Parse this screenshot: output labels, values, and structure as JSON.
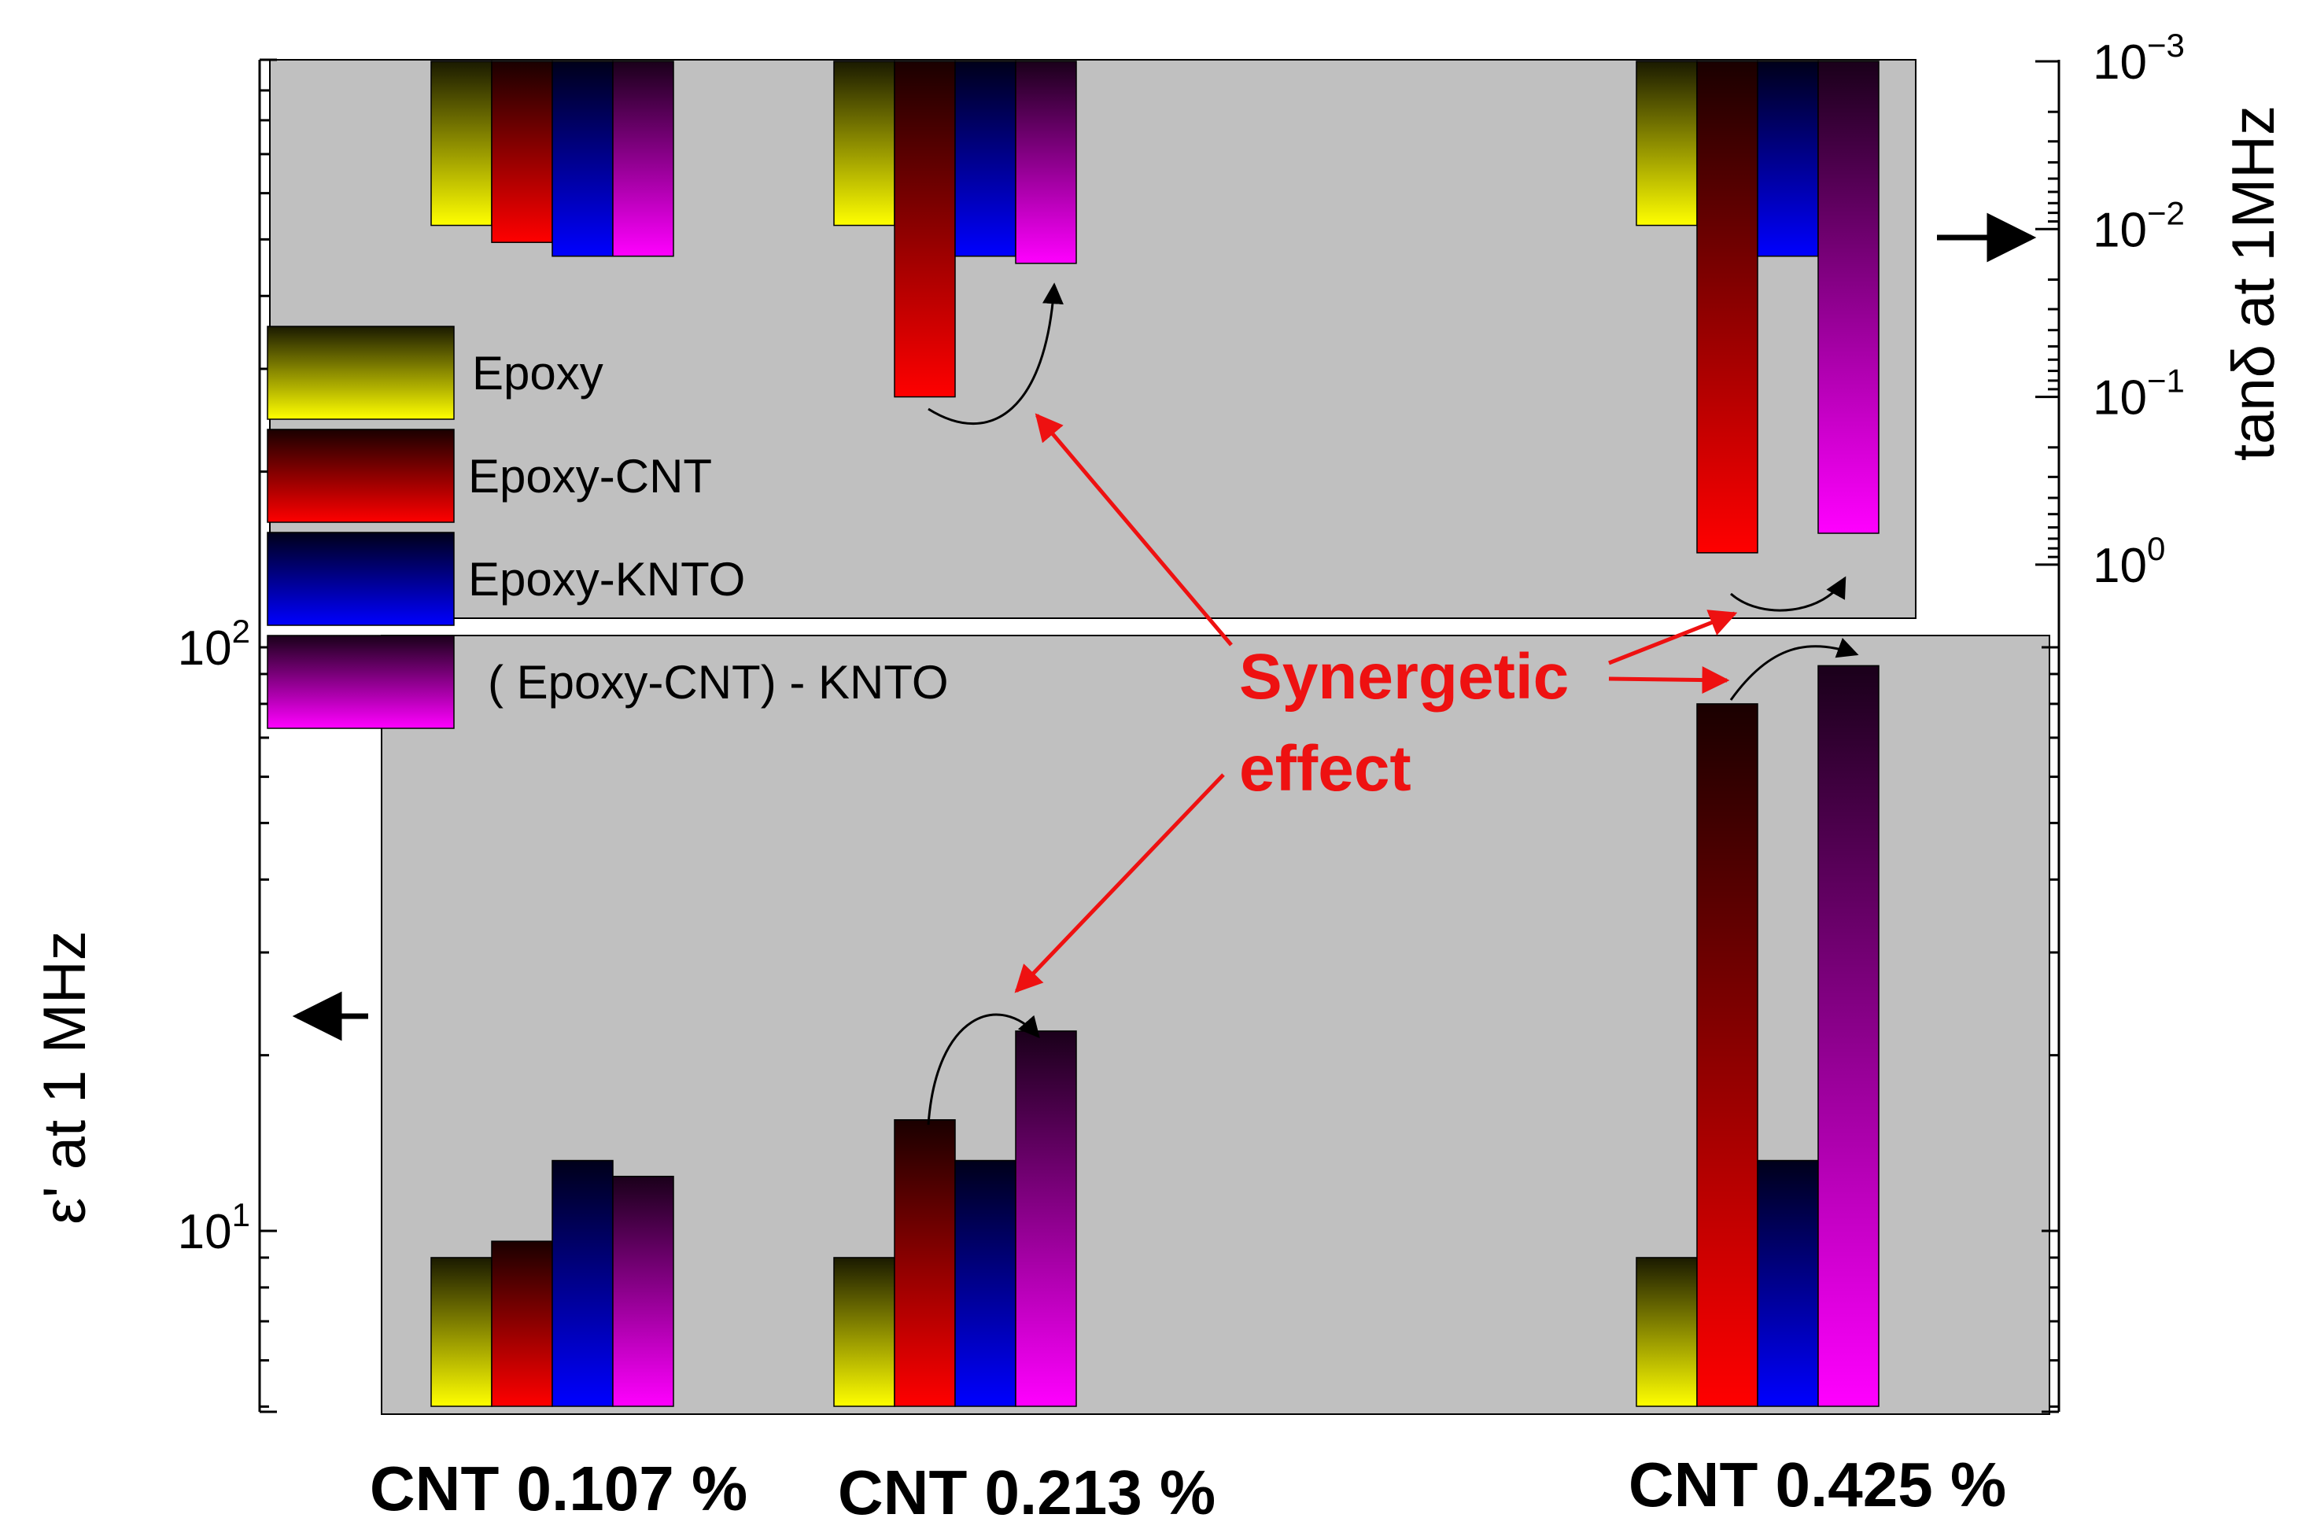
{
  "chart_data": {
    "type": "bar",
    "categories": [
      "CNT 0.107 %",
      "CNT 0.213 %",
      "CNT 0.425 %"
    ],
    "colors": {
      "Epoxy": "#ffff00",
      "Epoxy-CNT": "#ff0000",
      "Epoxy-KNTO": "#0000ff",
      "(Epoxy-CNT)-KNTO": "#ff00ff",
      "panel": "#c0c0c0",
      "annotation": "#ee1111"
    },
    "legend": {
      "placement": "upper-left",
      "entries": [
        "Epoxy",
        "Epoxy-CNT",
        "Epoxy-KNTO",
        "( Epoxy-CNT)   - KNTO"
      ]
    },
    "epsilon_panel": {
      "ylabel": "ε' at 1 MHz",
      "yscale": "log",
      "ylim": [
        5,
        130
      ],
      "yticks": [
        {
          "value": 10,
          "base": "10",
          "exp": "1"
        },
        {
          "value": 100,
          "base": "10",
          "exp": "2"
        }
      ],
      "series": [
        {
          "name": "Epoxy",
          "values": [
            9,
            9,
            9
          ]
        },
        {
          "name": "Epoxy-CNT",
          "values": [
            9.6,
            15.5,
            80
          ]
        },
        {
          "name": "Epoxy-KNTO",
          "values": [
            13.2,
            13.2,
            13.2
          ]
        },
        {
          "name": "( Epoxy-CNT)   - KNTO",
          "values": [
            12.4,
            22,
            93
          ]
        }
      ]
    },
    "tand_panel": {
      "ylabel": "tanδ at 1MHz",
      "yscale": "log",
      "yaxis_inverted": true,
      "ylim": [
        0.001,
        1.5
      ],
      "yticks": [
        {
          "value": 0.001,
          "base": "10",
          "exp": "−3"
        },
        {
          "value": 0.01,
          "base": "10",
          "exp": "−2"
        },
        {
          "value": 0.1,
          "base": "10",
          "exp": "−1"
        },
        {
          "value": 1,
          "base": "10",
          "exp": "0"
        }
      ],
      "series": [
        {
          "name": "Epoxy",
          "values": [
            0.0095,
            0.0095,
            0.0095
          ]
        },
        {
          "name": "Epoxy-CNT",
          "values": [
            0.012,
            0.1,
            0.85
          ]
        },
        {
          "name": "Epoxy-KNTO",
          "values": [
            0.0145,
            0.0145,
            0.0145
          ]
        },
        {
          "name": "( Epoxy-CNT)   - KNTO",
          "values": [
            0.0145,
            0.016,
            0.65
          ]
        }
      ]
    },
    "annotation": {
      "line1": "Synergetic",
      "line2": "effect"
    }
  }
}
